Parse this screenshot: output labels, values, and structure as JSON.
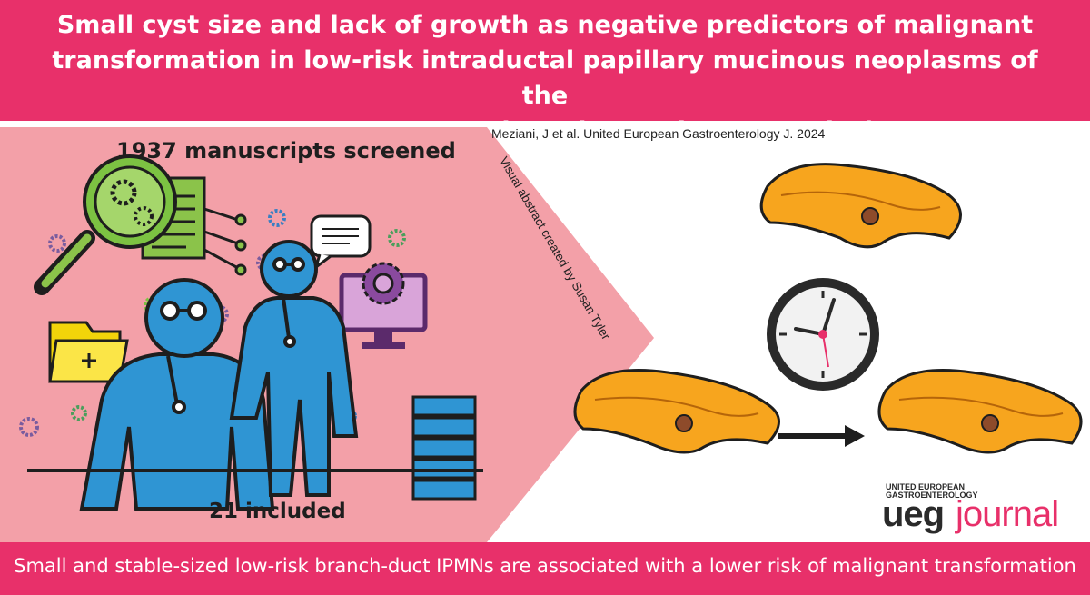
{
  "header": {
    "title_lines": [
      "Small cyst size and lack of growth as negative predictors of malignant",
      "transformation in low-risk intraductal papillary mucinous neoplasms of the",
      "pancreas: A systematic review and meta-analysis"
    ]
  },
  "citation": "Meziani, J et al. United European Gastroenterology J. 2024",
  "credit": "Visual abstract created by Susan Tyler",
  "study": {
    "screened": "1937 manuscripts screened",
    "included": "21 included"
  },
  "logo": {
    "small_lines": [
      "UNITED EUROPEAN",
      "GASTROENTEROLOGY"
    ],
    "ueg": "ueg",
    "journal": "journal"
  },
  "conclusion": "Small and stable-sized low-risk branch-duct IPMNs are associated with a lower risk of malignant transformation",
  "colors": {
    "banner": "#e8306a",
    "panel": "#f3a0a8",
    "pancreas": "#f7a51e",
    "figure": "#2f95d3"
  },
  "icons": [
    "magnifier-gear-icon",
    "document-icon",
    "folder-plus-icon",
    "chat-bubble-icon",
    "monitor-gear-icon",
    "server-stack-icon",
    "gear-icon",
    "clock-icon",
    "pancreas-icon",
    "arrow-right-icon"
  ]
}
